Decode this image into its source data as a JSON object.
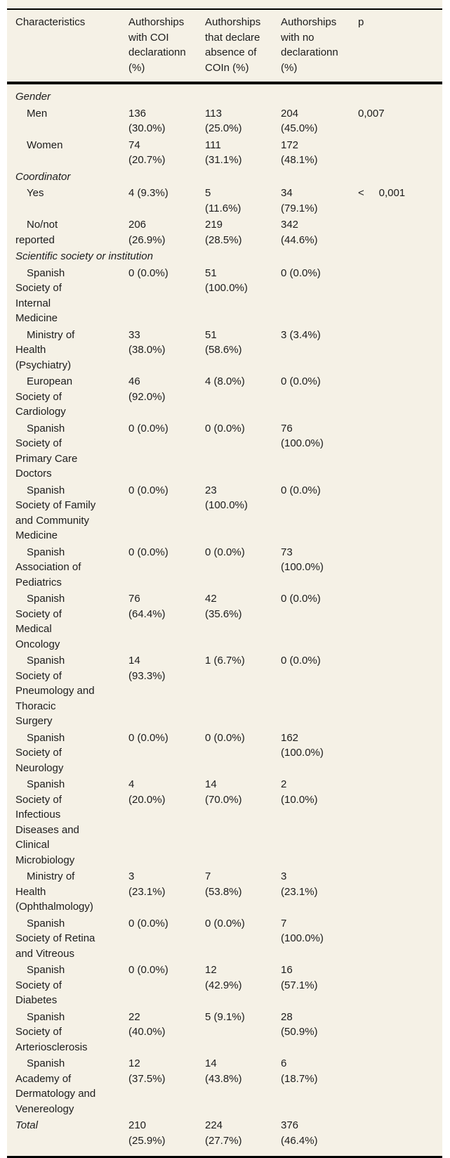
{
  "colors": {
    "page_background": "#ffffff",
    "panel_background": "#f5f1e6",
    "text": "#1c1c1c",
    "rule": "#000000"
  },
  "table": {
    "columns": [
      {
        "key": "label",
        "label": "Characteristics"
      },
      {
        "key": "with_coi",
        "label": "Authorships\nwith COI\ndeclarationn\n(%)"
      },
      {
        "key": "absence_coi",
        "label": "Authorships\nthat declare\nabsence of\nCOIn (%)"
      },
      {
        "key": "no_declaration",
        "label": "Authorships\nwith no\ndeclarationn\n(%)"
      },
      {
        "key": "p",
        "label": "p"
      }
    ],
    "rows": [
      {
        "style": "section",
        "label": "Gender"
      },
      {
        "style": "item",
        "label": "Men",
        "with_coi": "136\n(30.0%)",
        "absence_coi": "113\n(25.0%)",
        "no_declaration": "204\n(45.0%)",
        "p": "0,007"
      },
      {
        "style": "item",
        "label": "Women",
        "with_coi": "74\n(20.7%)",
        "absence_coi": "111\n(31.1%)",
        "no_declaration": "172\n(48.1%)"
      },
      {
        "style": "section",
        "label": "Coordinator"
      },
      {
        "style": "item",
        "label": "Yes",
        "with_coi": "4 (9.3%)",
        "absence_coi": "5\n(11.6%)",
        "no_declaration": "34\n(79.1%)",
        "p": "<     0,001"
      },
      {
        "style": "item",
        "label": "No/not\nreported",
        "with_coi": "206\n(26.9%)",
        "absence_coi": "219\n(28.5%)",
        "no_declaration": "342\n(44.6%)"
      },
      {
        "style": "section",
        "label": "Scientific society or institution"
      },
      {
        "style": "item",
        "label": "Spanish\nSociety of\nInternal\nMedicine",
        "with_coi": "0 (0.0%)",
        "absence_coi": "51\n(100.0%)",
        "no_declaration": "0 (0.0%)"
      },
      {
        "style": "item",
        "label": "Ministry of\nHealth\n(Psychiatry)",
        "with_coi": "33\n(38.0%)",
        "absence_coi": "51\n(58.6%)",
        "no_declaration": "3 (3.4%)"
      },
      {
        "style": "item",
        "label": "European\nSociety of\nCardiology",
        "with_coi": "46\n(92.0%)",
        "absence_coi": "4 (8.0%)",
        "no_declaration": "0 (0.0%)"
      },
      {
        "style": "item",
        "label": "Spanish\nSociety of\nPrimary Care\nDoctors",
        "with_coi": "0 (0.0%)",
        "absence_coi": "0 (0.0%)",
        "no_declaration": "76\n(100.0%)"
      },
      {
        "style": "item",
        "label": "Spanish\nSociety of Family\nand Community\nMedicine",
        "with_coi": "0 (0.0%)",
        "absence_coi": "23\n(100.0%)",
        "no_declaration": "0 (0.0%)"
      },
      {
        "style": "item",
        "label": "Spanish\nAssociation of\nPediatrics",
        "with_coi": "0 (0.0%)",
        "absence_coi": "0 (0.0%)",
        "no_declaration": "73\n(100.0%)"
      },
      {
        "style": "item",
        "label": "Spanish\nSociety of\nMedical\nOncology",
        "with_coi": "76\n(64.4%)",
        "absence_coi": "42\n(35.6%)",
        "no_declaration": "0 (0.0%)"
      },
      {
        "style": "item",
        "label": "Spanish\nSociety of\nPneumology and\nThoracic\nSurgery",
        "with_coi": "14\n(93.3%)",
        "absence_coi": "1 (6.7%)",
        "no_declaration": "0 (0.0%)"
      },
      {
        "style": "item",
        "label": "Spanish\nSociety of\nNeurology",
        "with_coi": "0 (0.0%)",
        "absence_coi": "0 (0.0%)",
        "no_declaration": "162\n(100.0%)"
      },
      {
        "style": "item",
        "label": "Spanish\nSociety of\nInfectious\nDiseases and\nClinical\nMicrobiology",
        "with_coi": "4\n(20.0%)",
        "absence_coi": "14\n(70.0%)",
        "no_declaration": "2\n(10.0%)"
      },
      {
        "style": "item",
        "label": "Ministry of\nHealth\n(Ophthalmology)",
        "with_coi": "3\n(23.1%)",
        "absence_coi": "7\n(53.8%)",
        "no_declaration": "3\n(23.1%)"
      },
      {
        "style": "item",
        "label": "Spanish\nSociety of Retina\nand Vitreous",
        "with_coi": "0 (0.0%)",
        "absence_coi": "0 (0.0%)",
        "no_declaration": "7\n(100.0%)"
      },
      {
        "style": "item",
        "label": "Spanish\nSociety of\nDiabetes",
        "with_coi": "0 (0.0%)",
        "absence_coi": "12\n(42.9%)",
        "no_declaration": "16\n(57.1%)"
      },
      {
        "style": "item",
        "label": "Spanish\nSociety of\nArteriosclerosis",
        "with_coi": "22\n(40.0%)",
        "absence_coi": "5 (9.1%)",
        "no_declaration": "28\n(50.9%)"
      },
      {
        "style": "item",
        "label": "Spanish\nAcademy of\nDermatology and\nVenereology",
        "with_coi": "12\n(37.5%)",
        "absence_coi": "14\n(43.8%)",
        "no_declaration": "6\n(18.7%)"
      },
      {
        "style": "total",
        "label": "Total",
        "with_coi": "210\n(25.9%)",
        "absence_coi": "224\n(27.7%)",
        "no_declaration": "376\n(46.4%)"
      }
    ]
  }
}
